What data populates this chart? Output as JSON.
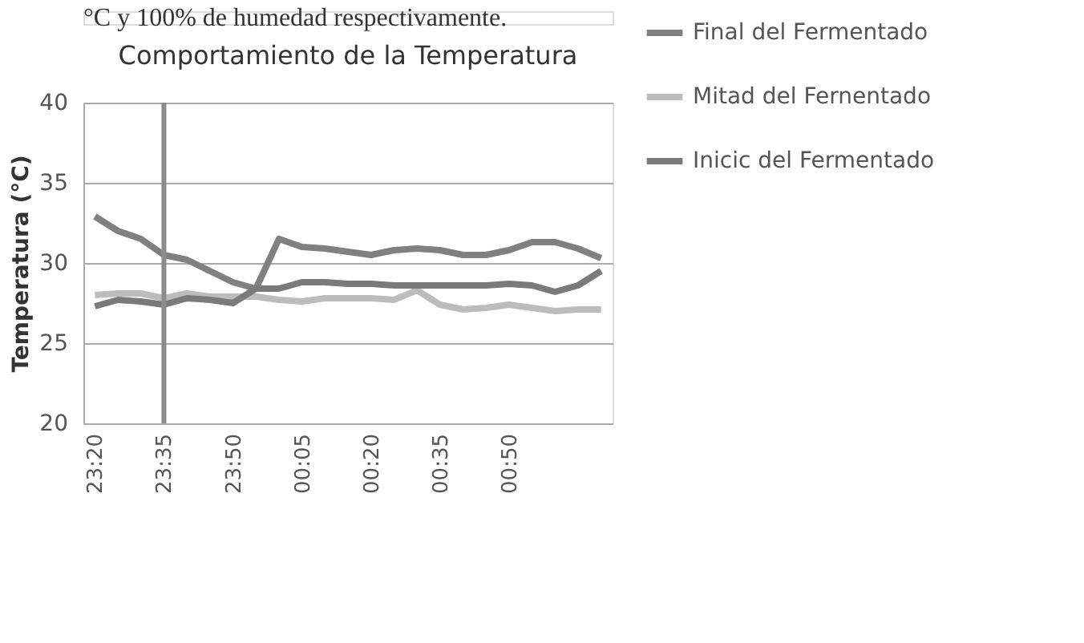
{
  "chart_data": {
    "type": "line",
    "title": "Comportamiento de la Temperatura",
    "ylabel": "Temperatura (°C)",
    "annotations": [
      "°C y 100% de humedad respectivamente."
    ],
    "categories": [
      "23:20",
      null,
      null,
      "23:35",
      null,
      null,
      "23:50",
      null,
      null,
      "00:05",
      null,
      null,
      "00:20",
      null,
      null,
      "00:35",
      null,
      null,
      "00:50",
      null,
      null,
      null,
      null
    ],
    "series": [
      {
        "name": "Final del Fermentado",
        "color": "#808080",
        "values": [
          32.9,
          32.0,
          31.5,
          30.5,
          30.2,
          29.5,
          28.8,
          28.4,
          31.5,
          31.0,
          30.9,
          30.7,
          30.5,
          30.8,
          30.9,
          30.8,
          30.5,
          30.5,
          30.8,
          31.3,
          31.3,
          30.9,
          30.3
        ]
      },
      {
        "name": "Mitad del Fernentado",
        "color": "#bcbcbc",
        "values": [
          28.0,
          28.1,
          28.1,
          27.8,
          28.1,
          27.9,
          27.9,
          27.9,
          27.7,
          27.6,
          27.8,
          27.8,
          27.8,
          27.7,
          28.3,
          27.4,
          27.1,
          27.2,
          27.4,
          27.2,
          27.0,
          27.1,
          27.1
        ]
      },
      {
        "name": "Inicic del Fermentado",
        "color": "#7a7a7a",
        "values": [
          27.3,
          27.7,
          27.6,
          27.4,
          27.8,
          27.7,
          27.5,
          28.4,
          28.4,
          28.8,
          28.8,
          28.7,
          28.7,
          28.6,
          28.6,
          28.6,
          28.6,
          28.6,
          28.7,
          28.6,
          28.2,
          28.6,
          29.5
        ]
      }
    ],
    "ylim": [
      20,
      40
    ],
    "yticks": [
      20,
      25,
      30,
      35,
      40
    ],
    "grid": "y",
    "legend": "right",
    "marker": "none",
    "line_style": "solid",
    "ref_lines": [
      {
        "axis": "x",
        "value": "23:35",
        "label": null,
        "color": "#8c8c8c"
      }
    ]
  }
}
